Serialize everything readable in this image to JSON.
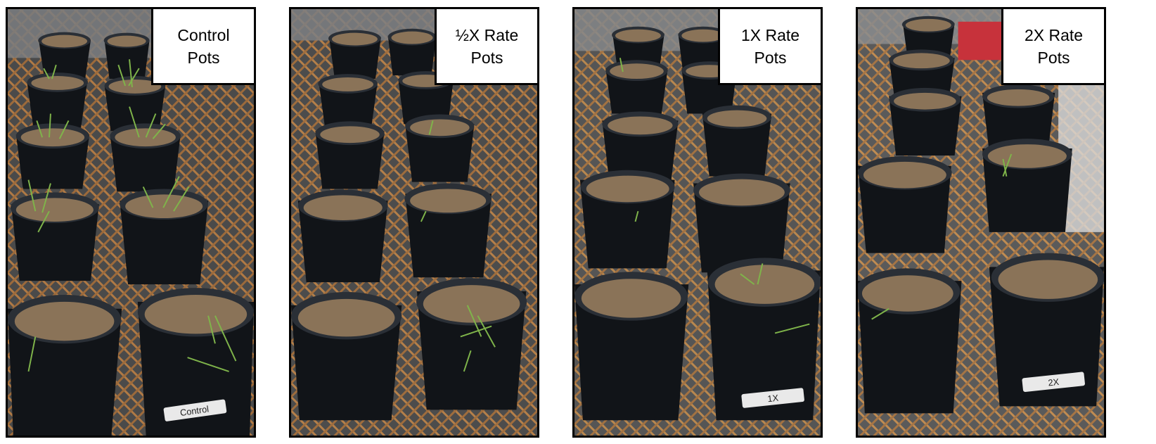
{
  "panels": [
    {
      "id": "control",
      "label_line1": "Control",
      "label_line2": "Pots",
      "tag_text": "Control"
    },
    {
      "id": "half",
      "label_line1": "½X Rate",
      "label_line2": "Pots",
      "tag_text": ""
    },
    {
      "id": "one",
      "label_line1": "1X Rate",
      "label_line2": "Pots",
      "tag_text": "1X"
    },
    {
      "id": "two",
      "label_line1": "2X Rate",
      "label_line2": "Pots",
      "tag_text": "2X"
    }
  ],
  "colors": {
    "pot": "#111418",
    "pot_rim": "#2a2f36",
    "soil": "#8a7358",
    "soil_dark": "#6b563f",
    "grass": "#7fb44a",
    "mesh": "#b07a45",
    "bench": "#4a4a4a"
  }
}
